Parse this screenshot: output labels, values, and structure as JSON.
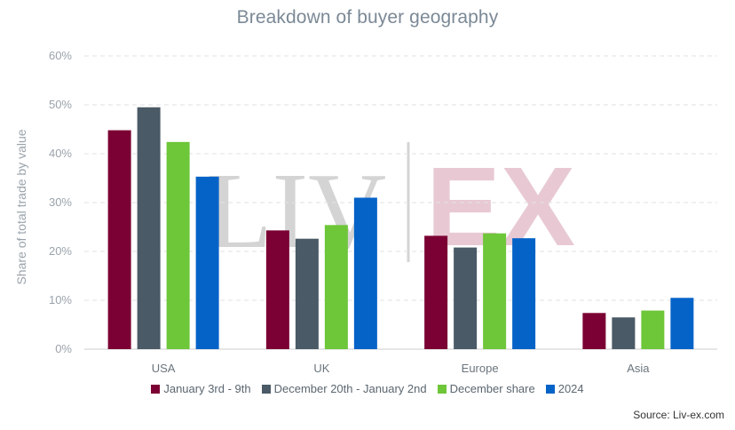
{
  "chart_data": {
    "type": "bar",
    "title": "Breakdown of buyer geography",
    "ylabel": "Share of total trade by value",
    "xlabel": "",
    "categories": [
      "USA",
      "UK",
      "Europe",
      "Asia"
    ],
    "ylim": [
      0,
      60
    ],
    "yticks": [
      0,
      10,
      20,
      30,
      40,
      50,
      60
    ],
    "ytick_labels": [
      "0%",
      "10%",
      "20%",
      "30%",
      "40%",
      "50%",
      "60%"
    ],
    "grid": true,
    "legend_position": "bottom",
    "series": [
      {
        "name": "January 3rd - 9th",
        "color": "#7b0033",
        "values": [
          44.8,
          24.3,
          23.2,
          7.4
        ]
      },
      {
        "name": "December 20th - January 2nd",
        "color": "#4a5a66",
        "values": [
          49.5,
          22.6,
          20.8,
          6.5
        ]
      },
      {
        "name": "December share",
        "color": "#6ec639",
        "values": [
          42.4,
          25.4,
          23.7,
          7.9
        ]
      },
      {
        "name": "2024",
        "color": "#0563c8",
        "values": [
          35.3,
          31.0,
          22.7,
          10.5
        ]
      }
    ],
    "watermark": {
      "left": "LIV",
      "right": "EX"
    },
    "source": "Source: Liv-ex.com"
  }
}
